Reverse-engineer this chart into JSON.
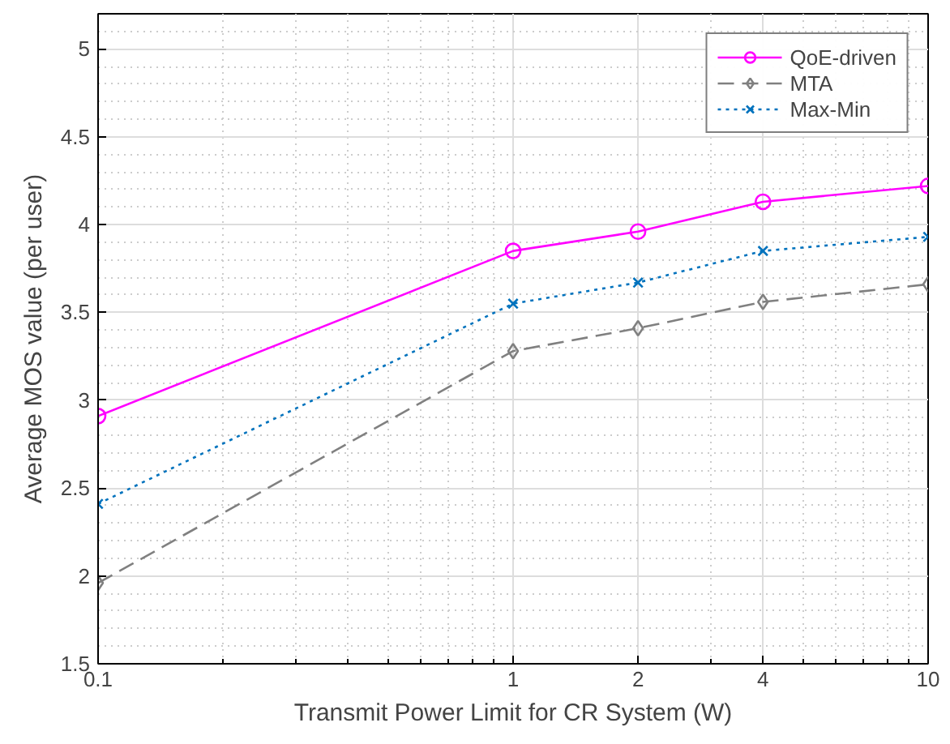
{
  "chart_data": {
    "type": "line",
    "xlabel": "Transmit Power Limit for CR System (W)",
    "ylabel": "Average MOS value (per user)",
    "log": "x",
    "x": [
      0.1,
      1,
      2,
      4,
      10
    ],
    "xlim": [
      0.1,
      10
    ],
    "xticks": [
      0.1,
      1,
      2,
      4,
      10
    ],
    "ylim": [
      1.5,
      5.2
    ],
    "yticks": [
      1.5,
      2,
      2.5,
      3,
      3.5,
      4,
      4.5,
      5
    ],
    "grid": true,
    "legend": "top right",
    "series": [
      {
        "name": "QoE-driven",
        "color": "#ff00ff",
        "marker": "circle",
        "line_style": "solid",
        "values": [
          2.91,
          3.85,
          3.96,
          4.13,
          4.22
        ]
      },
      {
        "name": "MTA",
        "color": "#808080",
        "marker": "diamond",
        "line_style": "dashed",
        "values": [
          1.96,
          3.28,
          3.41,
          3.56,
          3.66
        ]
      },
      {
        "name": "Max-Min",
        "color": "#0072bd",
        "marker": "cross",
        "line_style": "dotted",
        "values": [
          2.41,
          3.55,
          3.67,
          3.85,
          3.93
        ]
      }
    ]
  }
}
